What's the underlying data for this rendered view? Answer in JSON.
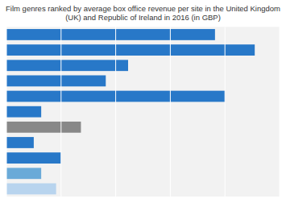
{
  "chart_data": {
    "type": "bar",
    "orientation": "horizontal",
    "title": "Film genres ranked by average box office revenue per site in the United Kingdom\n(UK) and Republic of Ireland in 2016 (in GBP)",
    "categories": [
      null,
      null,
      null,
      null,
      null,
      null,
      null,
      null,
      null,
      null,
      null
    ],
    "values": [
      84,
      100,
      49,
      40,
      88,
      14,
      30,
      11,
      22,
      14,
      20
    ],
    "colors": [
      "#2878c8",
      "#2878c8",
      "#2878c8",
      "#2878c8",
      "#2878c8",
      "#2878c8",
      "#888888",
      "#2878c8",
      "#2878c8",
      "#6aaad8",
      "#b8d4ee"
    ],
    "xlim": [
      0,
      110
    ],
    "xticks": [
      0,
      22,
      44,
      66,
      88,
      110
    ],
    "grid": true,
    "tick_labels": false
  }
}
